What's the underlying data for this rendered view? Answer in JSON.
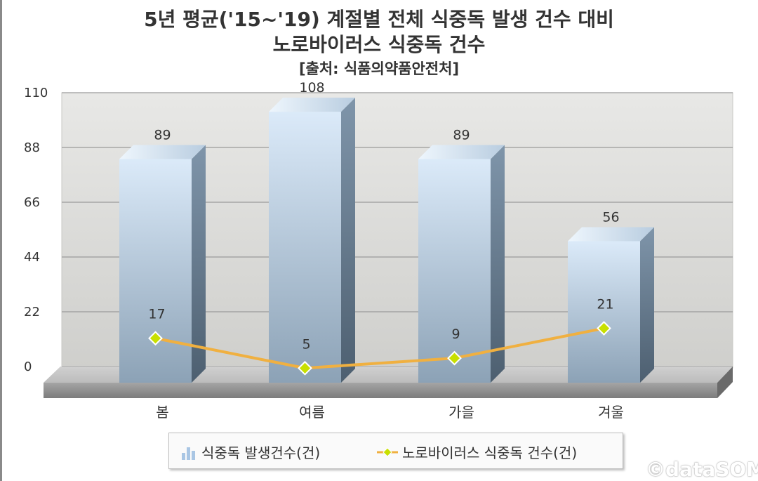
{
  "chart_data": {
    "type": "bar",
    "title_line1": "5년 평균('15~'19) 계절별 전체 식중독 발생 건수 대비",
    "title_line2": "노로바이러스 식중독 건수",
    "subtitle": "[출처: 식품의약품안전처]",
    "categories": [
      "봄",
      "여름",
      "가을",
      "겨울"
    ],
    "series": [
      {
        "name": "식중독 발생건수(건)",
        "type": "bar",
        "values": [
          89,
          108,
          89,
          56
        ],
        "color": "#b8cde3"
      },
      {
        "name": "노로바이러스 식중독 건수(건)",
        "type": "line",
        "values": [
          17,
          5,
          9,
          21
        ],
        "color": "#f0b040",
        "marker_color": "#c8e000"
      }
    ],
    "ylim": [
      0,
      110
    ],
    "yticks": [
      "110",
      "88",
      "66",
      "44",
      "22",
      "0"
    ],
    "ytick_values": [
      110,
      88,
      66,
      44,
      22,
      0
    ],
    "grid": true,
    "legend_position": "bottom"
  },
  "watermark": "©dataSOM",
  "colors": {
    "plot_bg_top": "#e6e6e4",
    "plot_bg_bottom": "#d2d2cf",
    "bar_top": "#d6e6f7",
    "bar_bottom": "#8ea4b8",
    "bar_side": "#5f7488",
    "line": "#f0b040",
    "marker": "#c8e000"
  }
}
